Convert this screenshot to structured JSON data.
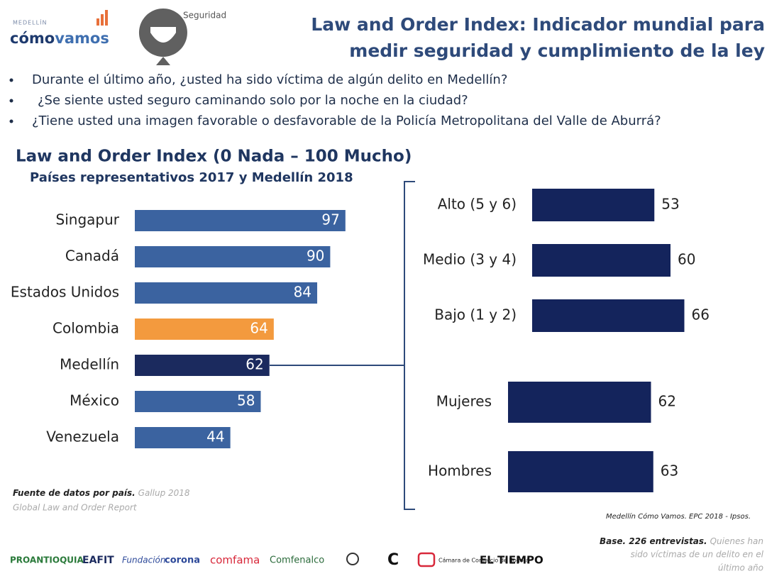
{
  "header": {
    "logo_top": "MEDELLÍN",
    "logo_a": "cómo",
    "logo_b": "vamos",
    "section": "Seguridad",
    "title_lines": [
      "Law and Order Index: Indicador mundial para",
      "medir seguridad y cumplimiento de la ley"
    ]
  },
  "bullets": [
    "Durante el último año, ¿usted ha sido víctima de algún delito en Medellín?",
    "¿Se siente usted seguro caminando solo por la noche en la ciudad?",
    "¿Tiene usted una imagen favorable o desfavorable de la Policía Metropolitana del Valle de Aburrá?"
  ],
  "chart_data": [
    {
      "type": "bar",
      "title": "Law and Order Index (0 Nada – 100 Mucho)",
      "subtitle": "Países representativos 2017 y Medellín 2018",
      "categories": [
        "Singapur",
        "Canadá",
        "Estados Unidos",
        "Colombia",
        "Medellín",
        "México",
        "Venezuela"
      ],
      "values": [
        97,
        90,
        84,
        64,
        62,
        58,
        44
      ],
      "colors": [
        "#3b63a0",
        "#3b63a0",
        "#3b63a0",
        "#f39a3e",
        "#1b2a5e",
        "#3b63a0",
        "#3b63a0"
      ],
      "source_bold": "Fuente de datos por país.",
      "source_rest": "Gallup 2018",
      "source_line2": "Global Law and Order Report"
    },
    {
      "type": "bar",
      "categories": [
        "Alto (5 y 6)",
        "Medio (3 y 4)",
        "Bajo (1 y 2)"
      ],
      "values": [
        53,
        60,
        66
      ],
      "color": "#14245c"
    },
    {
      "type": "bar",
      "categories": [
        "Mujeres",
        "Hombres"
      ],
      "values": [
        62,
        63
      ],
      "color": "#14245c",
      "source": "Medellín Cómo Vamos. EPC 2018 - Ipsos."
    }
  ],
  "notes": {
    "base_bold": "Base. 226 entrevistas.",
    "base_rest_1": "Quienes han",
    "base_rest_2": "sido víctimas de un delito en el",
    "base_rest_3": "último año"
  },
  "footer_logos": [
    "PROANTIOQUIA",
    "EAFIT",
    "Fundación",
    "corona",
    "comfama",
    "Comfenalco",
    "C",
    "Cámara de Comercio de Bogotá",
    "EL TIEMPO"
  ]
}
